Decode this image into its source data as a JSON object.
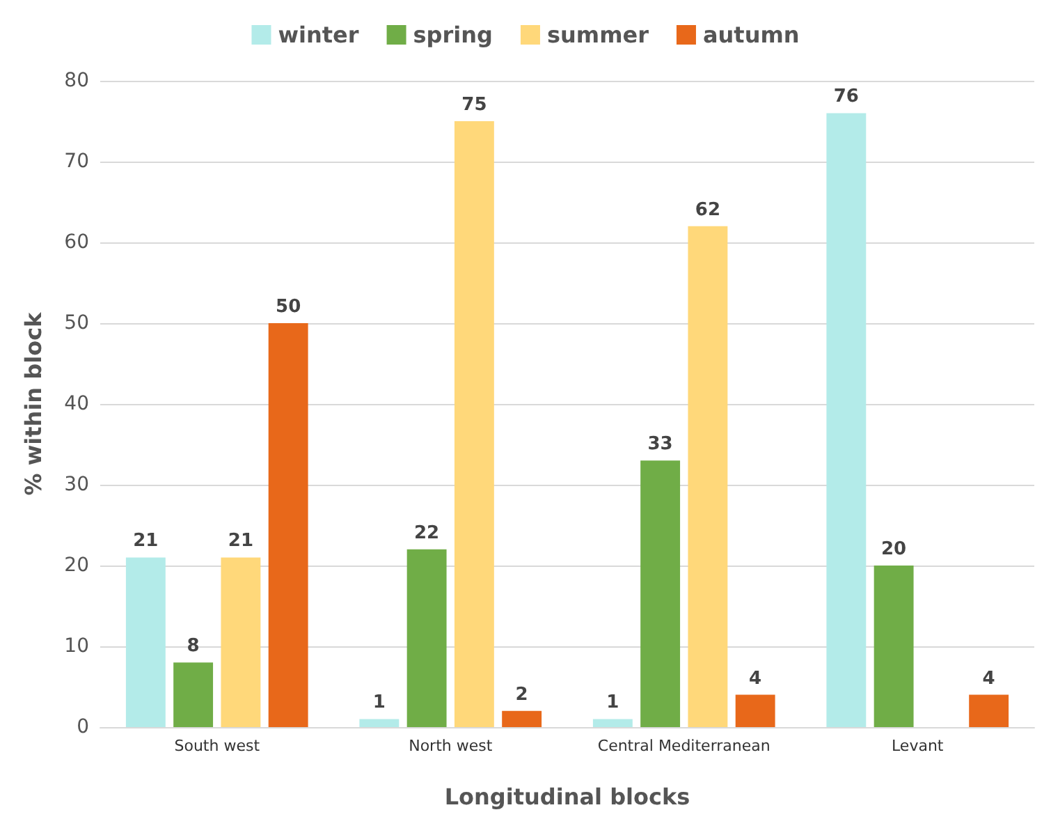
{
  "chart_data": {
    "type": "bar",
    "xlabel": "Longitudinal blocks",
    "ylabel": "% within block",
    "categories": [
      "South west",
      "North west",
      "Central Mediterranean",
      "Levant"
    ],
    "series": [
      {
        "name": "winter",
        "color": "#b3ebe9",
        "values": [
          21,
          1,
          1,
          76
        ]
      },
      {
        "name": "spring",
        "color": "#70ad47",
        "values": [
          8,
          22,
          33,
          20
        ]
      },
      {
        "name": "summer",
        "color": "#ffd87a",
        "values": [
          21,
          75,
          62,
          null
        ]
      },
      {
        "name": "autumn",
        "color": "#e8681a",
        "values": [
          50,
          2,
          4,
          4
        ]
      }
    ],
    "ylim": [
      0,
      80
    ],
    "yticks": [
      0,
      10,
      20,
      30,
      40,
      50,
      60,
      70,
      80
    ],
    "grid": "y",
    "legend": "top",
    "data_labels": true
  }
}
